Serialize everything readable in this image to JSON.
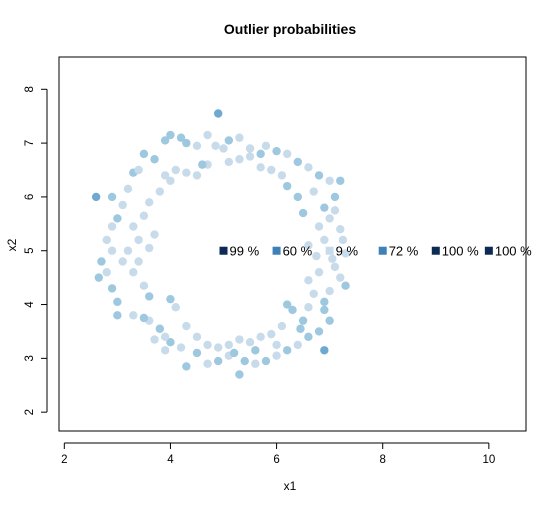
{
  "chart_data": {
    "type": "scatter",
    "title": "Outlier probabilities",
    "xlabel": "x1",
    "ylabel": "x2",
    "xlim": [
      1.9,
      10.7
    ],
    "ylim": [
      1.65,
      8.6
    ],
    "xticks": [
      "2",
      "4",
      "6",
      "8",
      "10"
    ],
    "yticks": [
      "2",
      "3",
      "4",
      "5",
      "6",
      "7",
      "8"
    ],
    "grid": false,
    "legend": "none",
    "color_scale": [
      "#e3ecf4",
      "#c8dbea",
      "#9ec8df",
      "#6fa8d0",
      "#3e80b8",
      "#1a4478",
      "#0d2a55"
    ],
    "points": [
      [
        4.9,
        7.55,
        0.45
      ],
      [
        5.1,
        7.05,
        0.25
      ],
      [
        5.3,
        7.1,
        0.2
      ],
      [
        5.5,
        6.9,
        0.2
      ],
      [
        5.7,
        6.8,
        0.25
      ],
      [
        5.8,
        6.95,
        0.2
      ],
      [
        6.0,
        6.85,
        0.25
      ],
      [
        6.2,
        6.8,
        0.2
      ],
      [
        6.4,
        6.65,
        0.25
      ],
      [
        6.6,
        6.55,
        0.2
      ],
      [
        6.8,
        6.4,
        0.25
      ],
      [
        7.0,
        6.3,
        0.2
      ],
      [
        7.1,
        6.0,
        0.25
      ],
      [
        7.2,
        6.3,
        0.4
      ],
      [
        6.9,
        5.8,
        0.25
      ],
      [
        7.0,
        5.6,
        0.2
      ],
      [
        7.2,
        5.4,
        0.2
      ],
      [
        7.25,
        5.2,
        0.15
      ],
      [
        7.3,
        4.95,
        0.2
      ],
      [
        7.1,
        4.7,
        0.15
      ],
      [
        7.2,
        4.5,
        0.2
      ],
      [
        7.3,
        4.35,
        0.25
      ],
      [
        7.0,
        4.25,
        0.2
      ],
      [
        6.9,
        4.05,
        0.25
      ],
      [
        7.0,
        3.7,
        0.3
      ],
      [
        6.8,
        3.5,
        0.25
      ],
      [
        6.9,
        3.15,
        0.45
      ],
      [
        6.6,
        3.4,
        0.25
      ],
      [
        6.4,
        3.25,
        0.2
      ],
      [
        6.2,
        3.15,
        0.25
      ],
      [
        6.0,
        3.05,
        0.2
      ],
      [
        5.8,
        2.95,
        0.25
      ],
      [
        5.6,
        2.9,
        0.2
      ],
      [
        5.4,
        2.95,
        0.25
      ],
      [
        5.3,
        2.7,
        0.3
      ],
      [
        5.1,
        3.05,
        0.2
      ],
      [
        4.9,
        2.95,
        0.25
      ],
      [
        4.7,
        2.9,
        0.2
      ],
      [
        4.5,
        3.1,
        0.25
      ],
      [
        4.3,
        2.85,
        0.3
      ],
      [
        4.2,
        3.2,
        0.2
      ],
      [
        4.0,
        3.3,
        0.25
      ],
      [
        3.9,
        3.4,
        0.2
      ],
      [
        3.8,
        3.55,
        0.25
      ],
      [
        3.6,
        3.7,
        0.2
      ],
      [
        3.5,
        3.75,
        0.25
      ],
      [
        3.3,
        3.8,
        0.2
      ],
      [
        3.0,
        3.8,
        0.3
      ],
      [
        3.0,
        4.05,
        0.35
      ],
      [
        2.9,
        4.3,
        0.25
      ],
      [
        2.8,
        4.6,
        0.2
      ],
      [
        2.7,
        4.8,
        0.25
      ],
      [
        2.65,
        4.5,
        0.3
      ],
      [
        2.9,
        5.0,
        0.2
      ],
      [
        2.8,
        5.2,
        0.15
      ],
      [
        2.9,
        5.45,
        0.2
      ],
      [
        3.0,
        5.6,
        0.25
      ],
      [
        3.1,
        5.85,
        0.2
      ],
      [
        2.9,
        6.0,
        0.25
      ],
      [
        2.6,
        6.0,
        0.45
      ],
      [
        3.2,
        6.15,
        0.2
      ],
      [
        3.3,
        6.45,
        0.25
      ],
      [
        3.4,
        6.5,
        0.2
      ],
      [
        3.5,
        6.8,
        0.35
      ],
      [
        3.7,
        6.7,
        0.25
      ],
      [
        3.9,
        7.05,
        0.3
      ],
      [
        4.0,
        7.15,
        0.35
      ],
      [
        4.2,
        7.1,
        0.3
      ],
      [
        4.3,
        7.0,
        0.25
      ],
      [
        4.5,
        6.95,
        0.2
      ],
      [
        4.7,
        7.15,
        0.2
      ],
      [
        4.85,
        6.95,
        0.15
      ],
      [
        5.0,
        6.9,
        0.15
      ],
      [
        4.1,
        6.5,
        0.15
      ],
      [
        3.9,
        6.4,
        0.15
      ],
      [
        4.0,
        6.3,
        0.15
      ],
      [
        3.8,
        6.1,
        0.2
      ],
      [
        3.6,
        5.9,
        0.2
      ],
      [
        3.5,
        5.65,
        0.2
      ],
      [
        3.3,
        5.45,
        0.15
      ],
      [
        3.4,
        5.2,
        0.2
      ],
      [
        3.2,
        5.0,
        0.15
      ],
      [
        3.1,
        4.8,
        0.2
      ],
      [
        3.3,
        4.6,
        0.2
      ],
      [
        3.5,
        4.35,
        0.2
      ],
      [
        3.6,
        4.15,
        0.25
      ],
      [
        4.0,
        4.1,
        0.35
      ],
      [
        4.1,
        3.95,
        0.2
      ],
      [
        4.3,
        3.6,
        0.15
      ],
      [
        4.5,
        3.4,
        0.2
      ],
      [
        4.7,
        3.25,
        0.2
      ],
      [
        4.9,
        3.2,
        0.15
      ],
      [
        5.1,
        3.25,
        0.2
      ],
      [
        5.3,
        3.35,
        0.2
      ],
      [
        5.5,
        3.3,
        0.2
      ],
      [
        5.7,
        3.4,
        0.2
      ],
      [
        5.9,
        3.45,
        0.15
      ],
      [
        6.1,
        3.6,
        0.2
      ],
      [
        6.2,
        4.0,
        0.35
      ],
      [
        6.3,
        3.9,
        0.25
      ],
      [
        6.5,
        3.7,
        0.25
      ],
      [
        6.6,
        3.95,
        0.2
      ],
      [
        6.7,
        4.2,
        0.2
      ],
      [
        6.6,
        4.45,
        0.2
      ],
      [
        6.8,
        4.6,
        0.15
      ],
      [
        6.75,
        4.9,
        0.15
      ],
      [
        6.6,
        5.1,
        0.2
      ],
      [
        6.9,
        5.2,
        0.2
      ],
      [
        6.8,
        5.45,
        0.2
      ],
      [
        6.5,
        5.7,
        0.25
      ],
      [
        6.4,
        6.0,
        0.25
      ],
      [
        6.2,
        6.2,
        0.25
      ],
      [
        6.1,
        6.4,
        0.2
      ],
      [
        5.9,
        6.5,
        0.2
      ],
      [
        5.7,
        6.55,
        0.2
      ],
      [
        5.3,
        6.7,
        0.2
      ],
      [
        5.1,
        6.65,
        0.15
      ],
      [
        4.7,
        6.6,
        0.15
      ],
      [
        4.5,
        6.4,
        0.15
      ],
      [
        4.3,
        6.45,
        0.15
      ],
      [
        3.7,
        5.3,
        0.15
      ],
      [
        3.6,
        5.05,
        0.15
      ],
      [
        3.4,
        4.8,
        0.15
      ],
      [
        3.7,
        3.35,
        0.2
      ],
      [
        3.9,
        3.15,
        0.2
      ],
      [
        5.2,
        3.1,
        0.25
      ],
      [
        5.6,
        3.15,
        0.25
      ],
      [
        6.0,
        3.25,
        0.2
      ],
      [
        6.45,
        3.55,
        0.3
      ],
      [
        6.9,
        3.9,
        0.3
      ],
      [
        7.05,
        4.85,
        0.15
      ],
      [
        7.1,
        5.75,
        0.2
      ],
      [
        6.7,
        6.1,
        0.2
      ],
      [
        5.5,
        6.75,
        0.2
      ],
      [
        4.6,
        6.6,
        0.25
      ]
    ],
    "annotations": [
      {
        "x": 5.0,
        "y": 5.0,
        "label": "99 %",
        "prob": 0.99
      },
      {
        "x": 6.0,
        "y": 5.0,
        "label": "60 %",
        "prob": 0.6
      },
      {
        "x": 7.0,
        "y": 5.0,
        "label": "9 %",
        "prob": 0.09
      },
      {
        "x": 8.0,
        "y": 5.0,
        "label": "72 %",
        "prob": 0.72
      },
      {
        "x": 9.0,
        "y": 5.0,
        "label": "100 %",
        "prob": 1.0
      },
      {
        "x": 10.0,
        "y": 5.0,
        "label": "100 %",
        "prob": 1.0
      }
    ]
  }
}
